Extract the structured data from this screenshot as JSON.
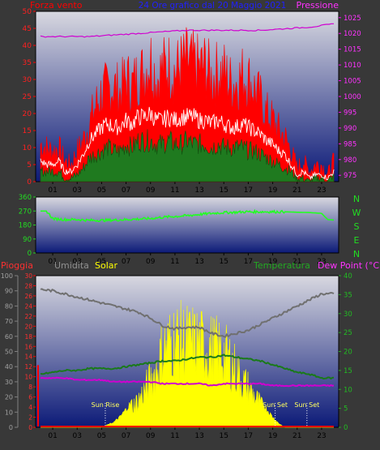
{
  "header": {
    "left_label": "Forza vento",
    "title": "24 Ore grafico dal 20 Maggio 2021",
    "right_label": "Pressione"
  },
  "colors": {
    "background": "#383838",
    "plot_top": "#d8d8e0",
    "plot_bottom": "#0c1a78",
    "red": "#ff0000",
    "green": "#1f7a1f",
    "white": "#ffffff",
    "magenta": "#d000d0",
    "lime": "#22ff22",
    "gray": "#707070",
    "yellow": "#ffff00",
    "dark_green": "#1a7a1a"
  },
  "chart_data": [
    {
      "type": "line",
      "name": "wind",
      "x_ticks": [
        "01",
        "03",
        "05",
        "07",
        "09",
        "11",
        "13",
        "15",
        "17",
        "19",
        "21",
        "23"
      ],
      "y_left": {
        "label": "Forza vento",
        "ticks": [
          0,
          5,
          10,
          15,
          20,
          25,
          30,
          35,
          40,
          45,
          50
        ],
        "lim": [
          0,
          50
        ]
      },
      "y_right": {
        "label": "Pressione",
        "ticks": [
          975,
          980,
          985,
          990,
          995,
          1000,
          1005,
          1010,
          1015,
          1020,
          1025
        ],
        "lim": [
          973,
          1027
        ]
      },
      "series": [
        {
          "role": "gust",
          "color": "#ff0000",
          "x": [
            0,
            0.5,
            1,
            1.5,
            2,
            2.5,
            3,
            3.5,
            4,
            4.5,
            5,
            5.5,
            6,
            6.5,
            7,
            7.5,
            8,
            8.5,
            9,
            9.5,
            10,
            10.5,
            11,
            11.5,
            12,
            12.5,
            13,
            13.5,
            14,
            14.5,
            15,
            15.5,
            16,
            16.5,
            17,
            17.5,
            18,
            18.5,
            19,
            19.5,
            20,
            20.5,
            21,
            21.5,
            22,
            22.5,
            23,
            23.5,
            24
          ],
          "values": [
            11,
            10,
            9,
            10,
            6,
            5,
            9,
            12,
            17,
            22,
            26,
            27,
            28,
            26,
            30,
            28,
            31,
            32,
            36,
            30,
            33,
            34,
            32,
            34,
            35,
            34,
            33,
            34,
            30,
            32,
            32,
            29,
            29,
            31,
            30,
            27,
            24,
            20,
            18,
            15,
            13,
            9,
            4,
            6,
            3,
            5,
            5,
            2,
            6
          ]
        },
        {
          "role": "mean",
          "color": "#ffffff",
          "x": [
            0,
            0.5,
            1,
            1.5,
            2,
            2.5,
            3,
            3.5,
            4,
            4.5,
            5,
            5.5,
            6,
            6.5,
            7,
            7.5,
            8,
            8.5,
            9,
            9.5,
            10,
            10.5,
            11,
            11.5,
            12,
            12.5,
            13,
            13.5,
            14,
            14.5,
            15,
            15.5,
            16,
            16.5,
            17,
            17.5,
            18,
            18.5,
            19,
            19.5,
            20,
            20.5,
            21,
            21.5,
            22,
            22.5,
            23,
            23.5,
            24
          ],
          "values": [
            6,
            5,
            5,
            6,
            3,
            3,
            5,
            8,
            12,
            14,
            16,
            17,
            16,
            16,
            18,
            17,
            19,
            19,
            20,
            18,
            18,
            19,
            18,
            19,
            19,
            19,
            18,
            18,
            17,
            18,
            17,
            16,
            16,
            17,
            16,
            15,
            14,
            12,
            11,
            9,
            8,
            5,
            2,
            3,
            1,
            2,
            2,
            1,
            3
          ]
        },
        {
          "role": "low",
          "color": "#1f7a1f",
          "x": [
            0,
            0.5,
            1,
            1.5,
            2,
            2.5,
            3,
            3.5,
            4,
            4.5,
            5,
            5.5,
            6,
            6.5,
            7,
            7.5,
            8,
            8.5,
            9,
            9.5,
            10,
            10.5,
            11,
            11.5,
            12,
            12.5,
            13,
            13.5,
            14,
            14.5,
            15,
            15.5,
            16,
            16.5,
            17,
            17.5,
            18,
            18.5,
            19,
            19.5,
            20,
            20.5,
            21,
            21.5,
            22,
            22.5,
            23,
            23.5,
            24
          ],
          "values": [
            3,
            3,
            3,
            3,
            1,
            1,
            2,
            4,
            7,
            8,
            9,
            10,
            9,
            9,
            11,
            10,
            12,
            12,
            12,
            11,
            11,
            12,
            11,
            11,
            12,
            11,
            11,
            11,
            10,
            11,
            10,
            10,
            10,
            10,
            9,
            9,
            8,
            7,
            6,
            5,
            4,
            3,
            1,
            1,
            0,
            1,
            1,
            0,
            2
          ]
        },
        {
          "role": "pressure",
          "axis": "right",
          "color": "#d000d0",
          "x": [
            0,
            2,
            4,
            6,
            8,
            10,
            12,
            14,
            16,
            18,
            20,
            22,
            24
          ],
          "values": [
            1019,
            1019,
            1019,
            1019.5,
            1020,
            1020.5,
            1021,
            1021,
            1021,
            1021,
            1021.5,
            1022,
            1023
          ]
        }
      ]
    },
    {
      "type": "line",
      "name": "wind_direction",
      "x_ticks": [
        "01",
        "03",
        "05",
        "07",
        "09",
        "11",
        "13",
        "15",
        "17",
        "19",
        "21",
        "23"
      ],
      "y_left": {
        "ticks": [
          0,
          90,
          180,
          270,
          360
        ],
        "lim": [
          0,
          360
        ]
      },
      "y_right_labels": [
        "N",
        "W",
        "S",
        "E",
        "N"
      ],
      "series": [
        {
          "color": "#22ff22",
          "x": [
            0,
            0.5,
            1,
            2,
            3,
            4,
            5,
            6,
            7,
            8,
            9,
            10,
            11,
            12,
            13,
            14,
            15,
            16,
            17,
            18,
            19,
            20,
            21,
            22,
            23,
            23.5,
            24
          ],
          "values": [
            270,
            270,
            220,
            215,
            215,
            210,
            210,
            212,
            215,
            218,
            222,
            230,
            235,
            240,
            248,
            255,
            260,
            262,
            265,
            265,
            265,
            265,
            262,
            260,
            255,
            215,
            212
          ]
        }
      ]
    },
    {
      "type": "line",
      "name": "rain_humidity_solar_temp",
      "x_ticks": [
        "01",
        "03",
        "05",
        "07",
        "09",
        "11",
        "13",
        "15",
        "17",
        "19",
        "21",
        "23"
      ],
      "header_labels": {
        "rain": "Pioggia",
        "humidity": "Umidita",
        "solar": "Solar",
        "temperature": "Temperatura",
        "dewpoint": "Dew Point (°C)"
      },
      "y_humidity": {
        "ticks": [
          0,
          10,
          20,
          30,
          40,
          50,
          60,
          70,
          80,
          90,
          100
        ],
        "lim": [
          0,
          100
        ]
      },
      "y_rain": {
        "ticks": [
          0,
          2,
          4,
          6,
          8,
          10,
          12,
          14,
          16,
          18,
          20,
          22,
          24,
          26,
          28,
          30
        ],
        "lim": [
          0,
          30
        ]
      },
      "y_temp": {
        "ticks": [
          0,
          5,
          10,
          15,
          20,
          25,
          30,
          35,
          40
        ],
        "lim": [
          0,
          40
        ]
      },
      "annotations": [
        {
          "text": "Sun Rise",
          "x": 5.3
        },
        {
          "text": "Sun Set",
          "x": 19.2
        },
        {
          "text": "Sun Set",
          "x": 21.8
        }
      ],
      "series": [
        {
          "role": "humidity",
          "color": "#707070",
          "x": [
            0,
            1,
            2,
            3,
            4,
            5,
            6,
            7,
            8,
            9,
            10,
            11,
            12,
            13,
            14,
            15,
            16,
            17,
            18,
            19,
            20,
            21,
            22,
            23,
            24
          ],
          "values": [
            91,
            90,
            88,
            86,
            84,
            82,
            80,
            78,
            76,
            72,
            67,
            65,
            66,
            66,
            62,
            60,
            62,
            64,
            68,
            72,
            76,
            80,
            84,
            88,
            88
          ]
        },
        {
          "role": "temperature",
          "color": "#1a7a1a",
          "x": [
            0,
            1,
            2,
            3,
            4,
            5,
            6,
            7,
            8,
            9,
            10,
            11,
            12,
            13,
            14,
            15,
            16,
            17,
            18,
            19,
            20,
            21,
            22,
            23,
            24
          ],
          "values": [
            14,
            14.5,
            15,
            15,
            15.5,
            15.5,
            15.5,
            16,
            16.5,
            17,
            17.5,
            17.5,
            18,
            18.5,
            18.5,
            19,
            18.5,
            18,
            17.5,
            16.5,
            15.5,
            14.5,
            14,
            13,
            13
          ]
        },
        {
          "role": "dewpoint",
          "color": "#d000d0",
          "x": [
            0,
            1,
            2,
            3,
            4,
            5,
            6,
            7,
            8,
            9,
            10,
            11,
            12,
            13,
            14,
            15,
            16,
            17,
            18,
            19,
            20,
            21,
            22,
            23,
            24
          ],
          "values": [
            13,
            13,
            13,
            12.5,
            12.5,
            12.5,
            12,
            12,
            12,
            12,
            11.5,
            11.5,
            11.5,
            11.5,
            11,
            11.5,
            11.5,
            11.5,
            11.5,
            11,
            11,
            11,
            11,
            11,
            11
          ]
        },
        {
          "role": "solar",
          "axis": "humidity",
          "color": "#ffff00",
          "x": [
            0,
            5,
            5.5,
            6,
            6.5,
            7,
            7.5,
            8,
            8.5,
            9,
            9.5,
            10,
            10.5,
            11,
            11.5,
            12,
            12.5,
            13,
            13.5,
            14,
            14.5,
            15,
            15.5,
            16,
            16.5,
            17,
            17.5,
            18,
            18.5,
            19,
            19.5,
            20,
            24
          ],
          "values": [
            0,
            0,
            2,
            4,
            8,
            14,
            20,
            26,
            35,
            45,
            55,
            75,
            80,
            85,
            84,
            83,
            82,
            81,
            78,
            76,
            74,
            70,
            65,
            55,
            45,
            38,
            30,
            22,
            14,
            8,
            3,
            0,
            0
          ]
        },
        {
          "role": "rain",
          "axis": "rain",
          "color": "#ff0000",
          "x": [
            0,
            24
          ],
          "values": [
            0,
            0
          ]
        }
      ]
    }
  ]
}
